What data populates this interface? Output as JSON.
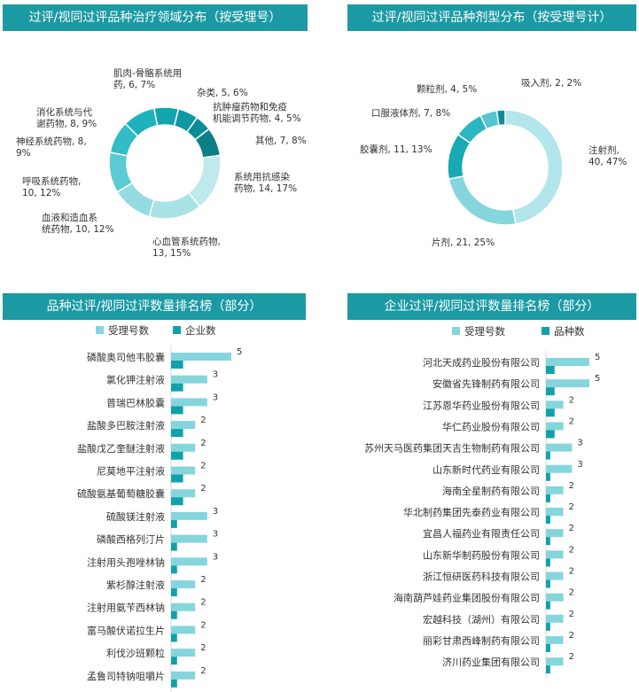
{
  "colors": {
    "header": "#1b9aa4",
    "light": "#84d6dc",
    "dark": "#11a1aa"
  },
  "panels": {
    "therapy": {
      "title": "过评/视同过评品种治疗领域分布（按受理号）"
    },
    "dosage": {
      "title": "过评/视同过评品种剂型分布（按受理号计）"
    },
    "variety": {
      "title": "品种过评/视同过评数量排名榜（部分）"
    },
    "company": {
      "title": "企业过评/视同过评数量排名榜（部分）"
    }
  },
  "chart_data": [
    {
      "type": "pie",
      "donut": true,
      "slices": [
        {
          "label": [
            "系统用抗感染",
            "药物, 14, 17%"
          ],
          "value": 14,
          "percent": 17,
          "color": "#bfe9ec"
        },
        {
          "label": [
            "心血管系统药物,",
            "13, 15%"
          ],
          "value": 13,
          "percent": 15,
          "color": "#a9e2e6"
        },
        {
          "label": [
            "血液和造血系",
            "统药物, 10, 12%"
          ],
          "value": 10,
          "percent": 12,
          "color": "#93dbe0"
        },
        {
          "label": [
            "呼吸系统药物,",
            "10, 12%"
          ],
          "value": 10,
          "percent": 12,
          "color": "#5ccad2"
        },
        {
          "label": [
            "神经系统药物, 8,",
            "9%"
          ],
          "value": 8,
          "percent": 9,
          "color": "#31bcc6"
        },
        {
          "label": [
            "消化系统与代",
            "谢药物, 8, 9%"
          ],
          "value": 8,
          "percent": 9,
          "color": "#1fb1bc"
        },
        {
          "label": [
            "肌肉-骨骼系统用",
            "药, 6, 7%"
          ],
          "value": 6,
          "percent": 7,
          "color": "#12a5b0"
        },
        {
          "label": [
            "杂类, 5, 6%"
          ],
          "value": 5,
          "percent": 6,
          "color": "#0e98a2"
        },
        {
          "label": [
            "抗肿瘤药物和免疫",
            "机能调节药物, 4, 5%"
          ],
          "value": 4,
          "percent": 5,
          "color": "#0c8c95"
        },
        {
          "label": [
            "其他, 7, 8%"
          ],
          "value": 7,
          "percent": 8,
          "color": "#0a7f88"
        }
      ]
    },
    {
      "type": "pie",
      "donut": true,
      "slices": [
        {
          "label": [
            "注射剂,",
            "40, 47%"
          ],
          "value": 40,
          "percent": 47,
          "color": "#b2e6ea"
        },
        {
          "label": [
            "片剂, 21, 25%"
          ],
          "value": 21,
          "percent": 25,
          "color": "#84d6dc"
        },
        {
          "label": [
            "胶囊剂, 11, 13%"
          ],
          "value": 11,
          "percent": 13,
          "color": "#17aab4"
        },
        {
          "label": [
            "口服液体剂, 7, 8%"
          ],
          "value": 7,
          "percent": 8,
          "color": "#2bb7c1"
        },
        {
          "label": [
            "颗粒剂, 4, 5%"
          ],
          "value": 4,
          "percent": 5,
          "color": "#55c6cf"
        },
        {
          "label": [
            "吸入剂, 2, 2%"
          ],
          "value": 2,
          "percent": 2,
          "color": "#0b8e97"
        }
      ]
    },
    {
      "type": "bar",
      "orientation": "horizontal",
      "legend": "top",
      "categories": [
        "磷酸奥司他韦胶囊",
        "氯化钾注射液",
        "普瑞巴林胶囊",
        "盐酸多巴胺注射液",
        "盐酸戊乙奎醚注射液",
        "尼莫地平注射液",
        "硫酸氨基葡萄糖胶囊",
        "硫酸镁注射液",
        "磷酸西格列汀片",
        "注射用头孢唑林钠",
        "紫杉醇注射液",
        "注射用氨苄西林钠",
        "富马酸伏诺拉生片",
        "利伐沙班颗粒",
        "孟鲁司特钠咀嚼片"
      ],
      "series": [
        {
          "name": "受理号数",
          "values": [
            5,
            3,
            3,
            2,
            2,
            2,
            2,
            3,
            3,
            3,
            2,
            2,
            2,
            2,
            2
          ],
          "show_labels": true
        },
        {
          "name": "企业数",
          "values": [
            1,
            1,
            1,
            1,
            1,
            1,
            1,
            0.5,
            0.5,
            0.5,
            0.5,
            0.5,
            0.5,
            0.5,
            0.5
          ],
          "show_labels": false
        }
      ]
    },
    {
      "type": "bar",
      "orientation": "horizontal",
      "legend": "top",
      "categories": [
        "河北天成药业股份有限公司",
        "安徽省先锋制药有限公司",
        "江苏恩华药业股份有限公司",
        "华仁药业股份有限公司",
        "苏州天马医药集团天吉生物制药有限公司",
        "山东新时代药业有限公司",
        "海南全星制药有限公司",
        "华北制药集团先泰药业有限公司",
        "宜昌人福药业有限责任公司",
        "山东新华制药股份有限公司",
        "浙江恒研医药科技有限公司",
        "海南葫芦娃药业集团股份有限公司",
        "宏越科技（湖州）有限公司",
        "丽彩甘肃西峰制药有限公司",
        "济川药业集团有限公司"
      ],
      "series": [
        {
          "name": "受理号数",
          "values": [
            5,
            5,
            2,
            2,
            3,
            3,
            2,
            2,
            2,
            2,
            2,
            2,
            2,
            2,
            2
          ],
          "show_labels": true
        },
        {
          "name": "品种数",
          "values": [
            1,
            1,
            1,
            1,
            0.5,
            0.5,
            0.5,
            0.5,
            0.5,
            0.5,
            0.5,
            0.5,
            0.5,
            0.5,
            0.5
          ],
          "show_labels": false
        }
      ]
    }
  ]
}
